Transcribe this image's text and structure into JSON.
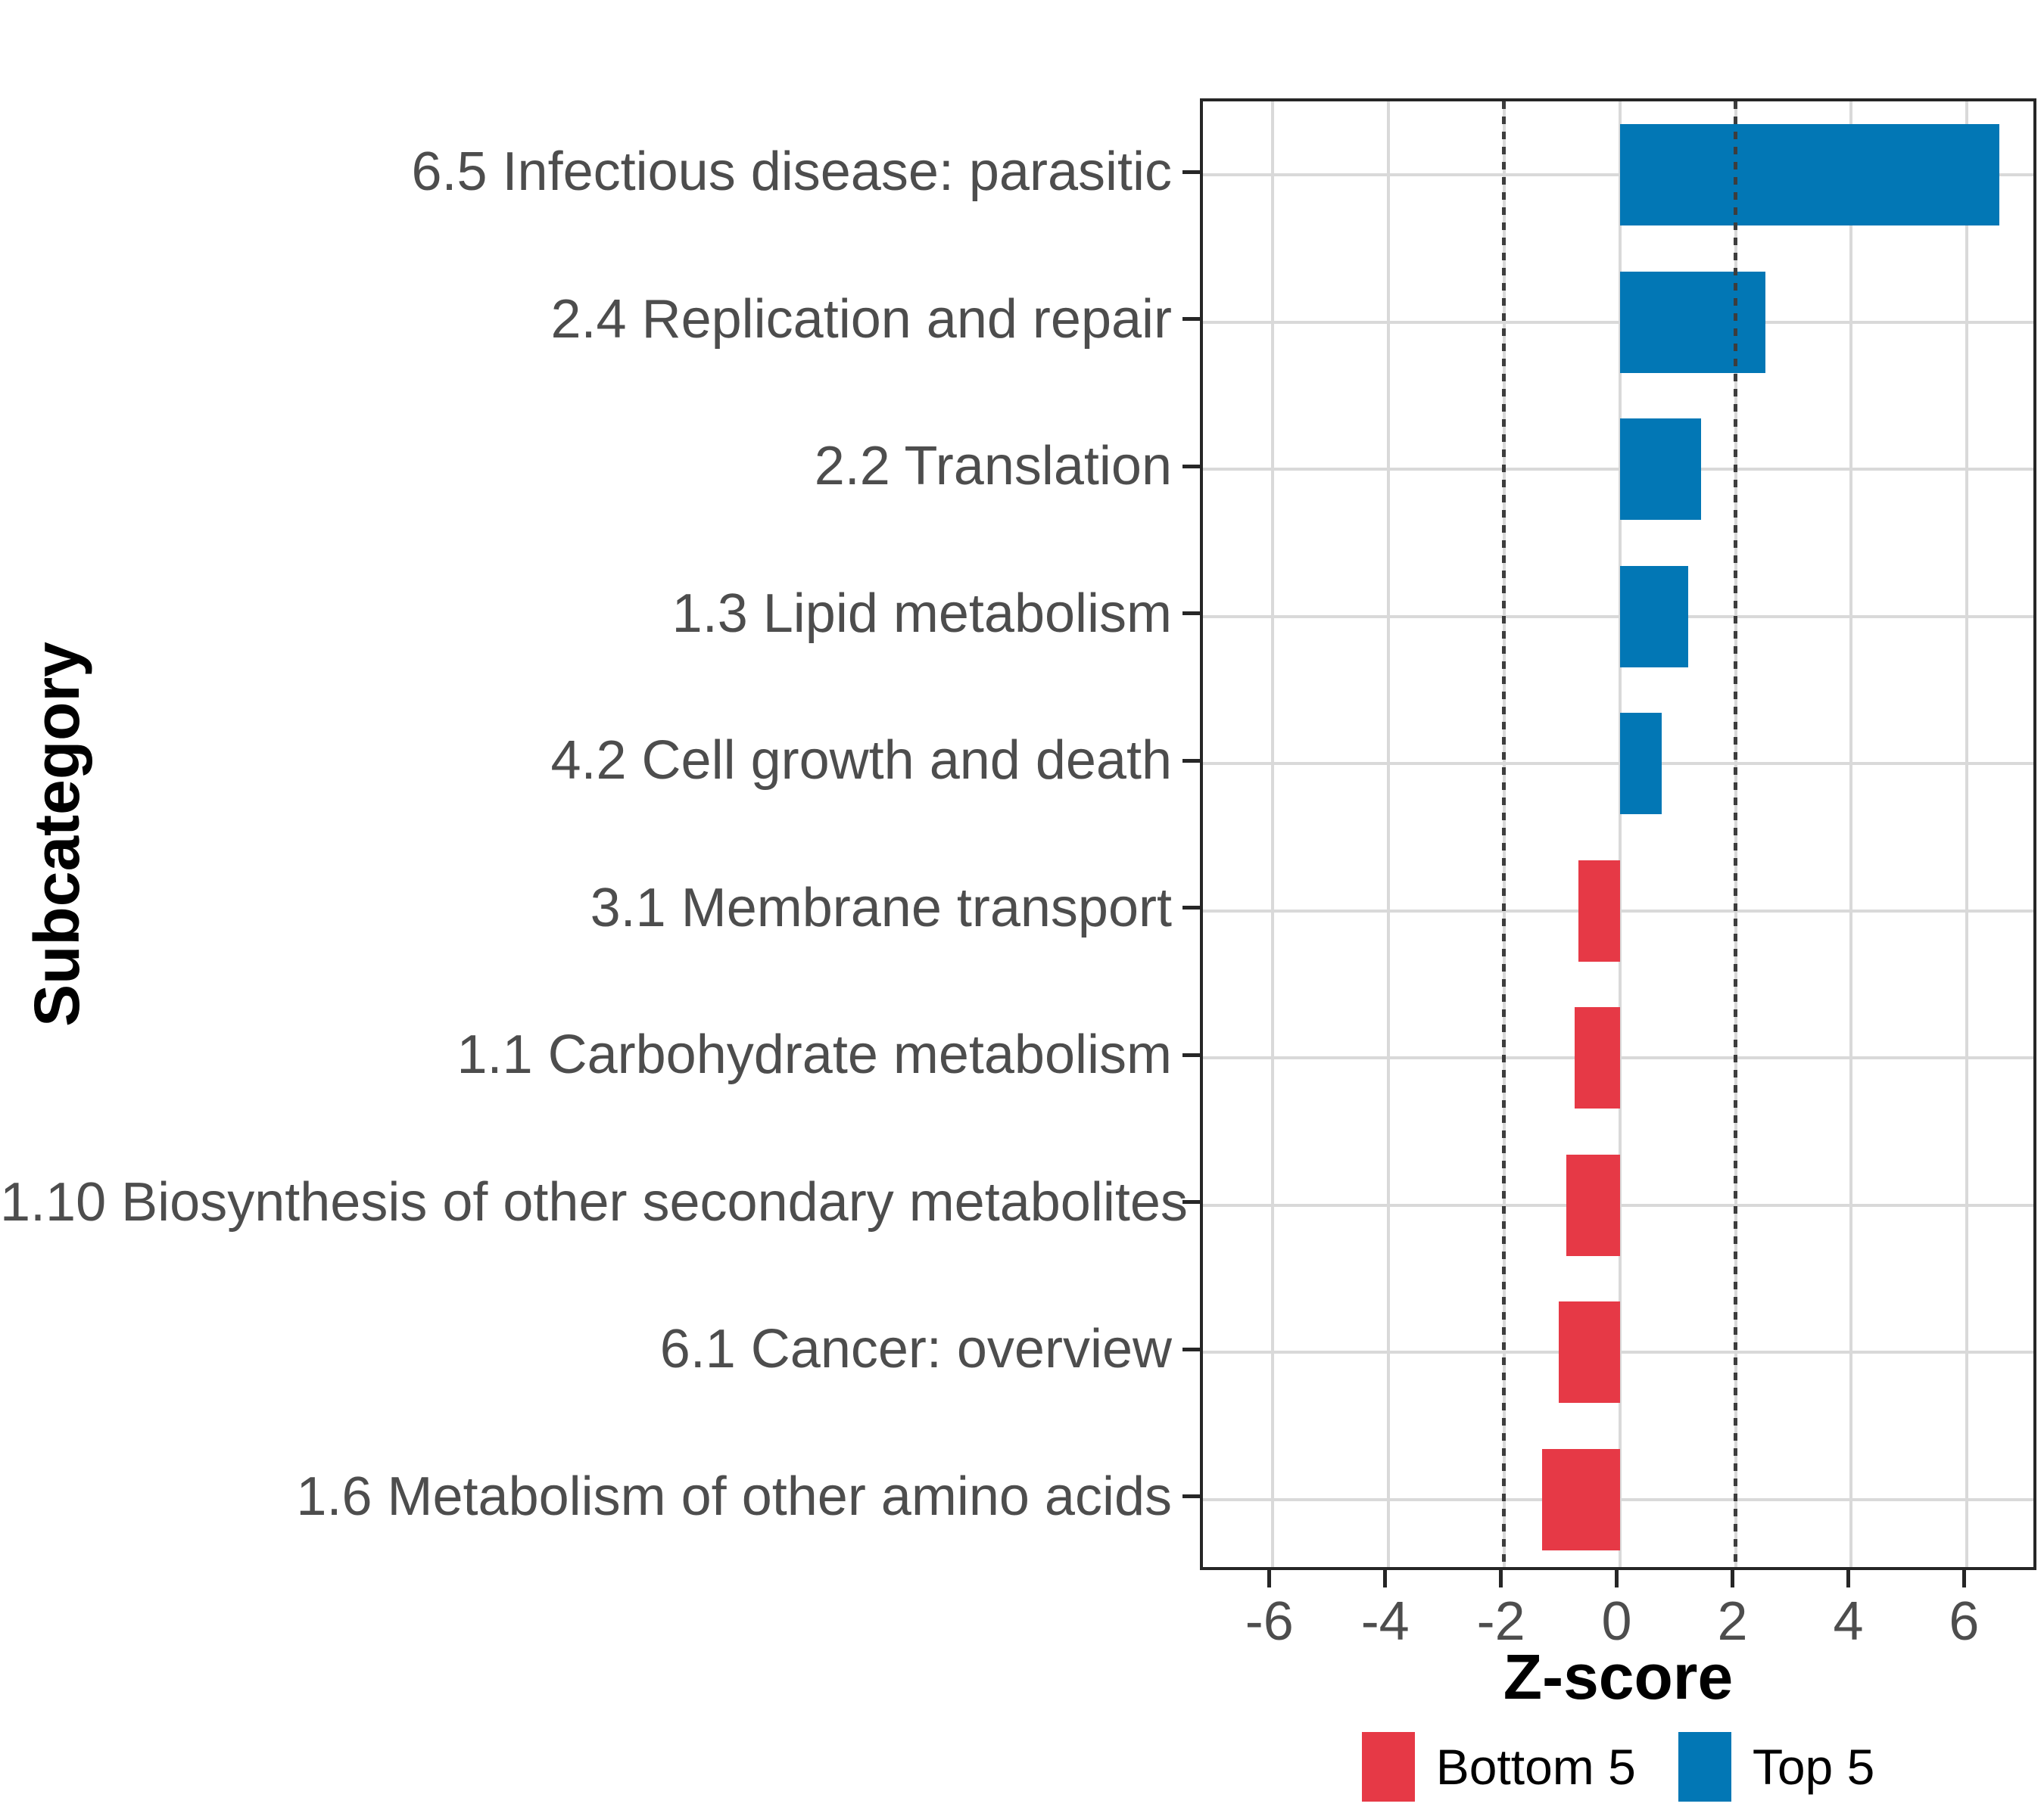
{
  "figure": {
    "x_axis_title": "Z-score",
    "y_axis_title": "Subcategory"
  },
  "legend": {
    "items": [
      {
        "label": "Bottom 5",
        "color": "#e63946"
      },
      {
        "label": "Top 5",
        "color": "#0277b5"
      }
    ]
  },
  "chart_data": {
    "type": "bar",
    "orientation": "horizontal",
    "title": "",
    "xlabel": "Z-score",
    "ylabel": "Subcategory",
    "xlim": [
      -7.2,
      7.25
    ],
    "x_ticks": [
      -6,
      -4,
      -2,
      0,
      2,
      4,
      6
    ],
    "reference_lines": [
      -2,
      2
    ],
    "grid": true,
    "legend_position": "bottom",
    "categories": [
      "6.5 Infectious disease: parasitic",
      "2.4 Replication and repair",
      "2.2 Translation",
      "1.3 Lipid metabolism",
      "4.2 Cell growth and death",
      "3.1 Membrane transport",
      "1.1 Carbohydrate metabolism",
      "1.10 Biosynthesis of other secondary metabolites",
      "6.1 Cancer: overview",
      "1.6 Metabolism of other amino acids"
    ],
    "values": [
      6.56,
      2.51,
      1.4,
      1.18,
      0.72,
      -0.72,
      -0.78,
      -0.92,
      -1.06,
      -1.34
    ],
    "groups": [
      "Top 5",
      "Top 5",
      "Top 5",
      "Top 5",
      "Top 5",
      "Bottom 5",
      "Bottom 5",
      "Bottom 5",
      "Bottom 5",
      "Bottom 5"
    ],
    "series_colors": {
      "Bottom 5": "#e63946",
      "Top 5": "#0277b5"
    }
  }
}
